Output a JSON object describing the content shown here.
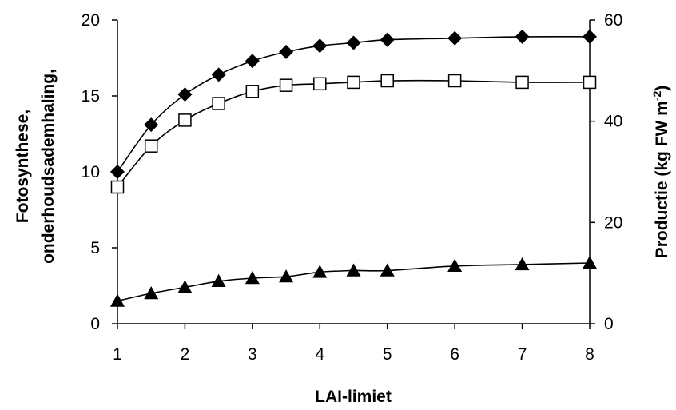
{
  "chart_data": {
    "type": "line",
    "title": "",
    "xlabel": "LAI-limiet",
    "ylabel": [
      "Fotosynthese,",
      "onderhoudsademhaling,"
    ],
    "y2label": {
      "main": "Productie (kg FW m",
      "sup": "-2",
      "close": ")"
    },
    "xlim": [
      1,
      8
    ],
    "ylim": [
      0,
      20
    ],
    "y2lim": [
      0,
      60
    ],
    "xticks": [
      "1",
      "2",
      "3",
      "4",
      "5",
      "6",
      "7",
      "8"
    ],
    "yticks": [
      "0",
      "5",
      "10",
      "15",
      "20"
    ],
    "y2ticks": [
      "0",
      "20",
      "40",
      "60"
    ],
    "grid": false,
    "series": [
      {
        "marker": "diamond-filled",
        "axis": "left",
        "x": [
          1,
          1.5,
          2,
          2.5,
          3,
          3.5,
          4,
          4.5,
          5,
          6,
          7,
          8
        ],
        "y": [
          10.0,
          13.1,
          15.1,
          16.4,
          17.3,
          17.9,
          18.3,
          18.5,
          18.7,
          18.8,
          18.9,
          18.9
        ]
      },
      {
        "marker": "square-open",
        "axis": "left",
        "x": [
          1,
          1.5,
          2,
          2.5,
          3,
          3.5,
          4,
          4.5,
          5,
          6,
          7,
          8
        ],
        "y": [
          9.0,
          11.7,
          13.4,
          14.5,
          15.3,
          15.7,
          15.8,
          15.9,
          16.0,
          16.0,
          15.9,
          15.9
        ]
      },
      {
        "marker": "triangle-filled",
        "axis": "left",
        "x": [
          1,
          1.5,
          2,
          2.5,
          3,
          3.5,
          4,
          4.5,
          5,
          6,
          7,
          8
        ],
        "y": [
          1.5,
          2.0,
          2.4,
          2.8,
          3.0,
          3.1,
          3.4,
          3.5,
          3.5,
          3.8,
          3.9,
          4.0
        ]
      }
    ]
  }
}
